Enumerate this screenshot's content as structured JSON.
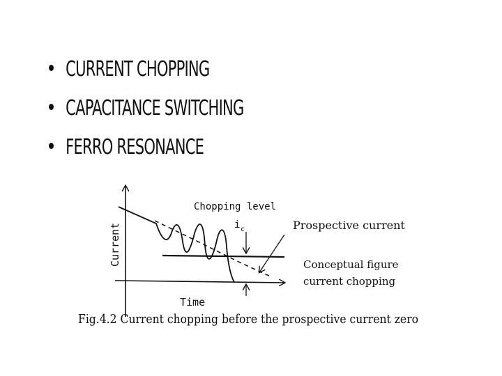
{
  "bullets": [
    {
      "text": "CURRENT CHOPPING"
    },
    {
      "text": "CAPACITANCE SWITCHING"
    },
    {
      "text": "FERRO RESONANCE"
    }
  ],
  "figure": {
    "axis_y_label": "Current",
    "axis_x_label": "Time",
    "chopping_level_label": "Chopping level",
    "ic_symbol": "i",
    "ic_subscript": "c",
    "prospective_current_label": "Prospective current",
    "conceptual_line1": "Conceptual figure",
    "conceptual_line2": "current chopping",
    "caption": "Fig.4.2 Current chopping before the prospective current zero"
  }
}
